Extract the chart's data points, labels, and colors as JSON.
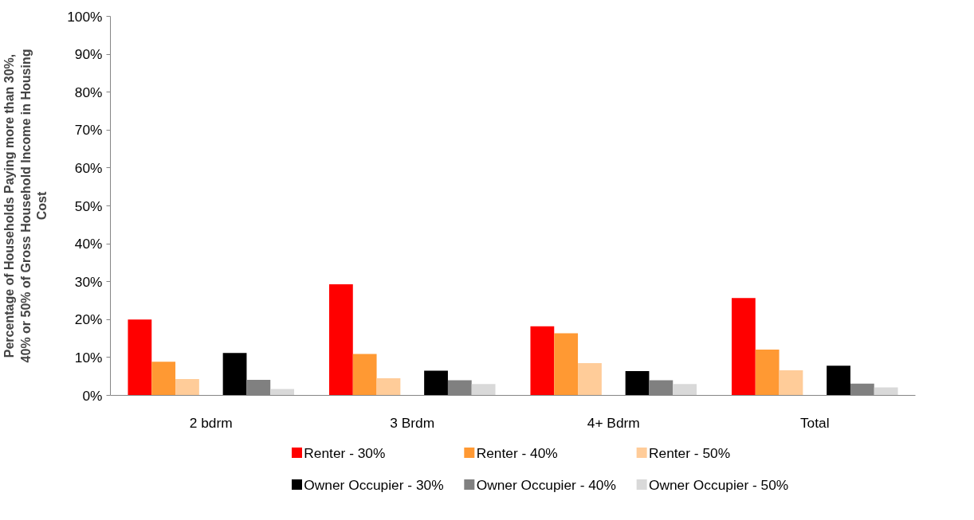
{
  "chart_data": {
    "type": "bar",
    "ylabel": "Percentage of Households Paying more than 30%, 40% or 50% of Gross Household Income in Housing Cost",
    "categories": [
      "2 bdrm",
      "3 Brdm",
      "4+ Bdrm",
      "Total"
    ],
    "series": [
      {
        "name": "Renter - 30%",
        "color": "#ff0000",
        "values": [
          20.0,
          29.3,
          18.2,
          25.7
        ]
      },
      {
        "name": "Renter - 40%",
        "color": "#ff9933",
        "values": [
          8.9,
          10.9,
          16.4,
          12.1
        ]
      },
      {
        "name": "Renter - 50%",
        "color": "#ffcc99",
        "values": [
          4.3,
          4.5,
          8.5,
          6.6
        ]
      },
      {
        "name": "Owner Occupier - 30%",
        "color": "#000000",
        "values": [
          11.2,
          6.5,
          6.4,
          7.8
        ]
      },
      {
        "name": "Owner Occupier - 40%",
        "color": "#808080",
        "values": [
          4.1,
          4.0,
          4.0,
          3.1
        ]
      },
      {
        "name": "Owner Occupier - 50%",
        "color": "#d9d9d9",
        "values": [
          1.7,
          3.0,
          3.0,
          2.1
        ]
      }
    ],
    "ylim": [
      0,
      100
    ],
    "yticks": [
      {
        "value": 0,
        "label": "0%"
      },
      {
        "value": 10,
        "label": "10%"
      },
      {
        "value": 20,
        "label": "20%"
      },
      {
        "value": 30,
        "label": "30%"
      },
      {
        "value": 40,
        "label": "40%"
      },
      {
        "value": 50,
        "label": "50%"
      },
      {
        "value": 60,
        "label": "60%"
      },
      {
        "value": 70,
        "label": "70%"
      },
      {
        "value": 80,
        "label": "80%"
      },
      {
        "value": 90,
        "label": "90%"
      },
      {
        "value": 100,
        "label": "100%"
      }
    ],
    "grid": false,
    "legend": "bottom"
  }
}
